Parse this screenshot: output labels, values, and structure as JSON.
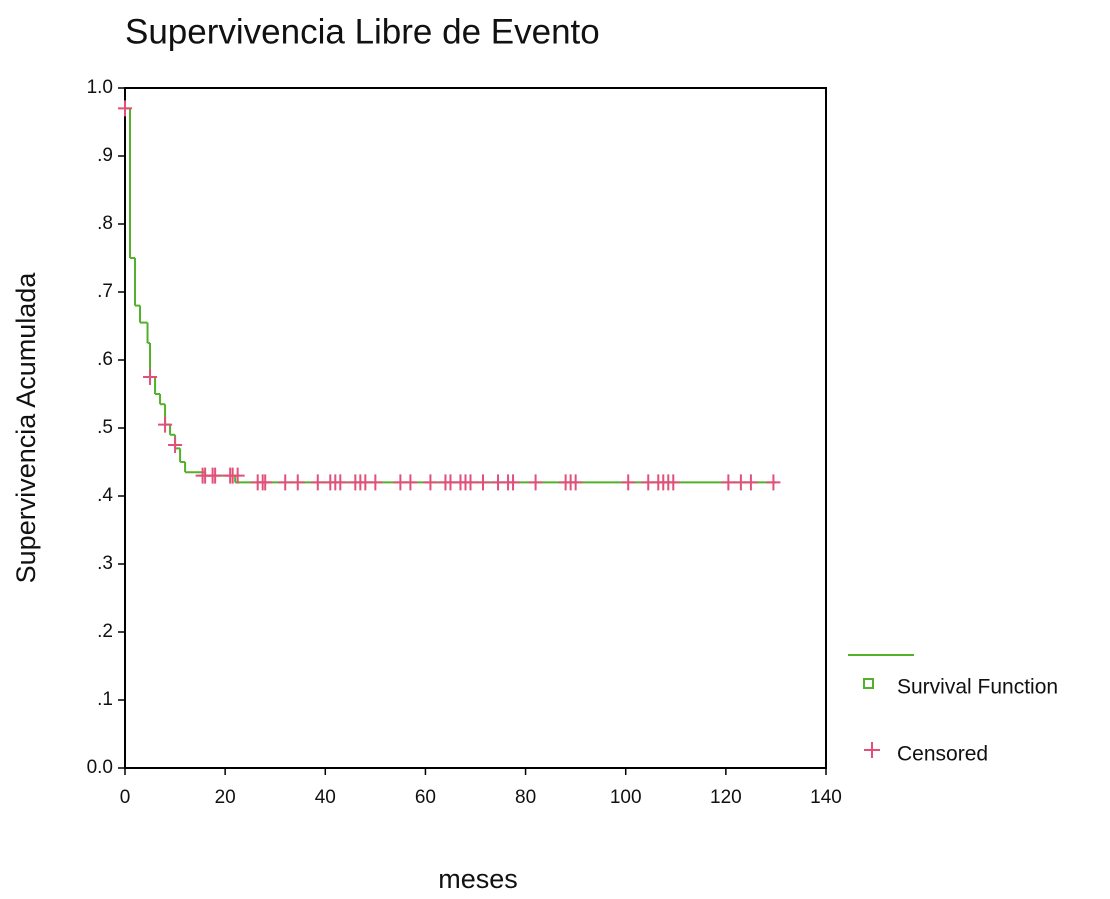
{
  "chart_data": {
    "type": "survival",
    "title": "Supervivencia Libre de Evento",
    "x_label": "meses",
    "y_label": "Supervivencia Acumulada",
    "xlim": [
      0,
      140
    ],
    "xticks": [
      0,
      20,
      40,
      60,
      80,
      100,
      120,
      140
    ],
    "ylim": [
      0,
      1
    ],
    "yticks": [
      {
        "value": 0,
        "label": "0.0"
      },
      {
        "value": 0.1,
        "label": ".1"
      },
      {
        "value": 0.2,
        "label": ".2"
      },
      {
        "value": 0.3,
        "label": ".3"
      },
      {
        "value": 0.4,
        "label": ".4"
      },
      {
        "value": 0.5,
        "label": ".5"
      },
      {
        "value": 0.6,
        "label": ".6"
      },
      {
        "value": 0.7,
        "label": ".7"
      },
      {
        "value": 0.8,
        "label": ".8"
      },
      {
        "value": 0.9,
        "label": ".9"
      },
      {
        "value": 1,
        "label": "1.0"
      }
    ],
    "series": [
      {
        "name": "Survival Function",
        "color": "#52b02a",
        "x": [
          0,
          1,
          2,
          3,
          4.5,
          5,
          6,
          7,
          8,
          9,
          10,
          11,
          12,
          16,
          22,
          130
        ],
        "values": [
          0.97,
          0.75,
          0.68,
          0.655,
          0.625,
          0.575,
          0.55,
          0.535,
          0.505,
          0.49,
          0.47,
          0.45,
          0.435,
          0.43,
          0.42,
          0.42
        ]
      },
      {
        "name": "Censored",
        "color": "#e0507a",
        "x": [
          0,
          5,
          8,
          10,
          15.5,
          16,
          17.5,
          18,
          21,
          21.5,
          22.5,
          26.5,
          27.5,
          28,
          32,
          34.5,
          38.5,
          41,
          42,
          43,
          46,
          47,
          48,
          50,
          55,
          57,
          61,
          64,
          65,
          67,
          68,
          69,
          71.5,
          74.5,
          76.5,
          77.5,
          82,
          88,
          89,
          90,
          100.5,
          104.5,
          106.5,
          107.5,
          108.5,
          109.5,
          120.5,
          123,
          125,
          129.5
        ],
        "values": [
          0.97,
          0.575,
          0.505,
          0.475,
          0.43,
          0.43,
          0.43,
          0.43,
          0.43,
          0.43,
          0.43,
          0.42,
          0.42,
          0.42,
          0.42,
          0.42,
          0.42,
          0.42,
          0.42,
          0.42,
          0.42,
          0.42,
          0.42,
          0.42,
          0.42,
          0.42,
          0.42,
          0.42,
          0.42,
          0.42,
          0.42,
          0.42,
          0.42,
          0.42,
          0.42,
          0.42,
          0.42,
          0.42,
          0.42,
          0.42,
          0.42,
          0.42,
          0.42,
          0.42,
          0.42,
          0.42,
          0.42,
          0.42,
          0.42,
          0.42
        ]
      }
    ]
  }
}
